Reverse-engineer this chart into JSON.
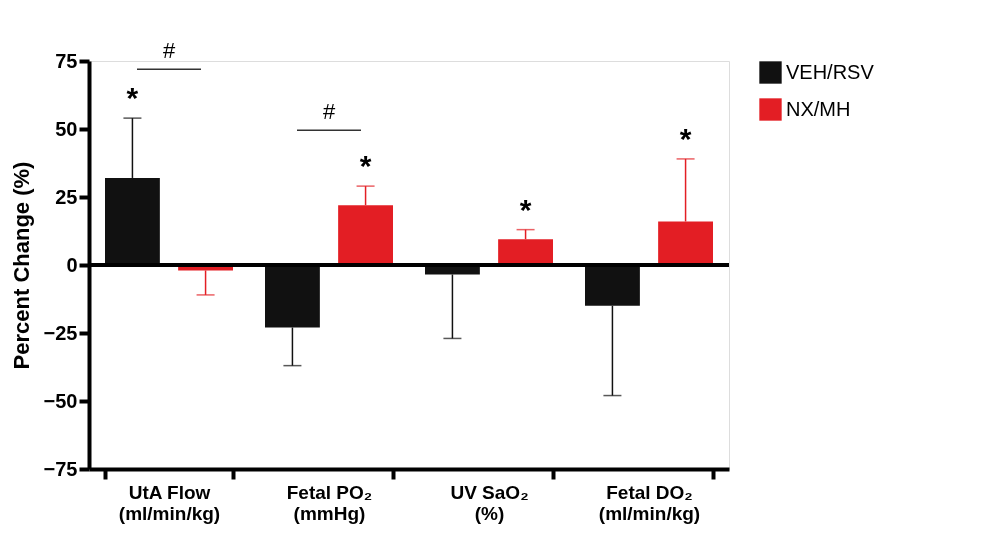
{
  "chart_data": {
    "type": "bar",
    "ylabel": "Percent Change (%)",
    "categories": [
      "UtA Flow\n(ml/min/kg)",
      "Fetal PO₂\n(mmHg)",
      "UV SaO₂\n(%)",
      "Fetal DO₂\n(ml/min/kg)"
    ],
    "series": [
      {
        "name": "VEH/RSV",
        "color": "#111111",
        "values": [
          32,
          -23,
          -3.5,
          -15
        ],
        "errors": [
          [
            32,
            54
          ],
          [
            -37,
            -23
          ],
          [
            -27,
            -3.5
          ],
          [
            -48,
            -15
          ]
        ]
      },
      {
        "name": "NX/MH",
        "color": "#e31e24",
        "values": [
          -2,
          22,
          9.5,
          16
        ],
        "errors": [
          [
            -11,
            -2
          ],
          [
            22,
            29
          ],
          [
            9.5,
            13
          ],
          [
            16,
            39
          ]
        ]
      }
    ],
    "ylim": [
      -75,
      75
    ],
    "yticks": [
      -75,
      -50,
      -25,
      0,
      25,
      50,
      75
    ],
    "ref_lines": [
      {
        "axis": "y",
        "value": 0
      }
    ],
    "annotations": [
      "*",
      "*",
      "*",
      "*",
      "#",
      "#"
    ],
    "grid": false,
    "legend": "top right"
  }
}
